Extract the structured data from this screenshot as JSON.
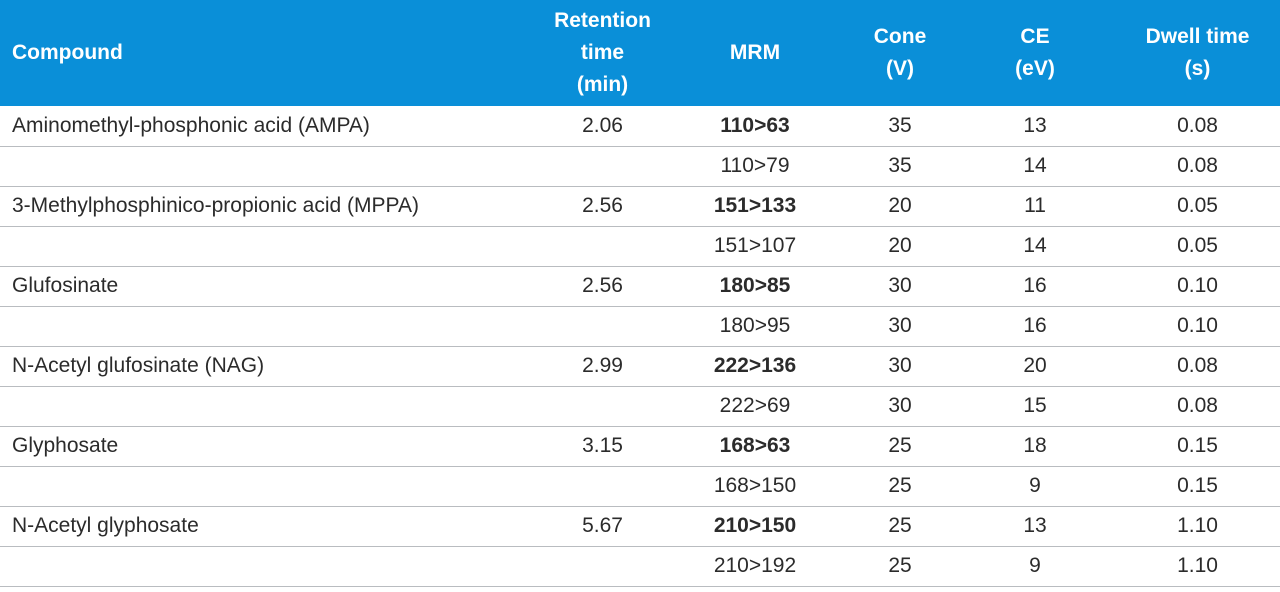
{
  "table": {
    "headers": {
      "compound": [
        "Compound"
      ],
      "retention_time": [
        "Retention",
        "time",
        "(min)"
      ],
      "mrm": [
        "MRM"
      ],
      "cone": [
        "Cone",
        "(V)"
      ],
      "ce": [
        "CE",
        "(eV)"
      ],
      "dwell_time": [
        "Dwell time",
        "(s)"
      ]
    },
    "rows": [
      {
        "compound": "Aminomethyl-phosphonic acid (AMPA)",
        "rt": "2.06",
        "mrm": "110>63",
        "quant": true,
        "cone": "35",
        "ce": "13",
        "dwell": "0.08"
      },
      {
        "compound": "",
        "rt": "",
        "mrm": "110>79",
        "quant": false,
        "cone": "35",
        "ce": "14",
        "dwell": "0.08"
      },
      {
        "compound": "3-Methylphosphinico-propionic acid (MPPA)",
        "rt": "2.56",
        "mrm": "151>133",
        "quant": true,
        "cone": "20",
        "ce": "11",
        "dwell": "0.05"
      },
      {
        "compound": "",
        "rt": "",
        "mrm": "151>107",
        "quant": false,
        "cone": "20",
        "ce": "14",
        "dwell": "0.05"
      },
      {
        "compound": "Glufosinate",
        "rt": "2.56",
        "mrm": "180>85",
        "quant": true,
        "cone": "30",
        "ce": "16",
        "dwell": "0.10"
      },
      {
        "compound": "",
        "rt": "",
        "mrm": "180>95",
        "quant": false,
        "cone": "30",
        "ce": "16",
        "dwell": "0.10"
      },
      {
        "compound": "N-Acetyl glufosinate (NAG)",
        "rt": "2.99",
        "mrm": "222>136",
        "quant": true,
        "cone": "30",
        "ce": "20",
        "dwell": "0.08"
      },
      {
        "compound": "",
        "rt": "",
        "mrm": "222>69",
        "quant": false,
        "cone": "30",
        "ce": "15",
        "dwell": "0.08"
      },
      {
        "compound": "Glyphosate",
        "rt": "3.15",
        "mrm": "168>63",
        "quant": true,
        "cone": "25",
        "ce": "18",
        "dwell": "0.15"
      },
      {
        "compound": "",
        "rt": "",
        "mrm": "168>150",
        "quant": false,
        "cone": "25",
        "ce": "9",
        "dwell": "0.15"
      },
      {
        "compound": "N-Acetyl glyphosate",
        "rt": "5.67",
        "mrm": "210>150",
        "quant": true,
        "cone": "25",
        "ce": "13",
        "dwell": "1.10"
      },
      {
        "compound": "",
        "rt": "",
        "mrm": "210>192",
        "quant": false,
        "cone": "25",
        "ce": "9",
        "dwell": "1.10"
      }
    ]
  },
  "colors": {
    "header_background": "#0a8fd8",
    "header_text": "#ffffff",
    "row_divider": "#b9bcc0"
  }
}
